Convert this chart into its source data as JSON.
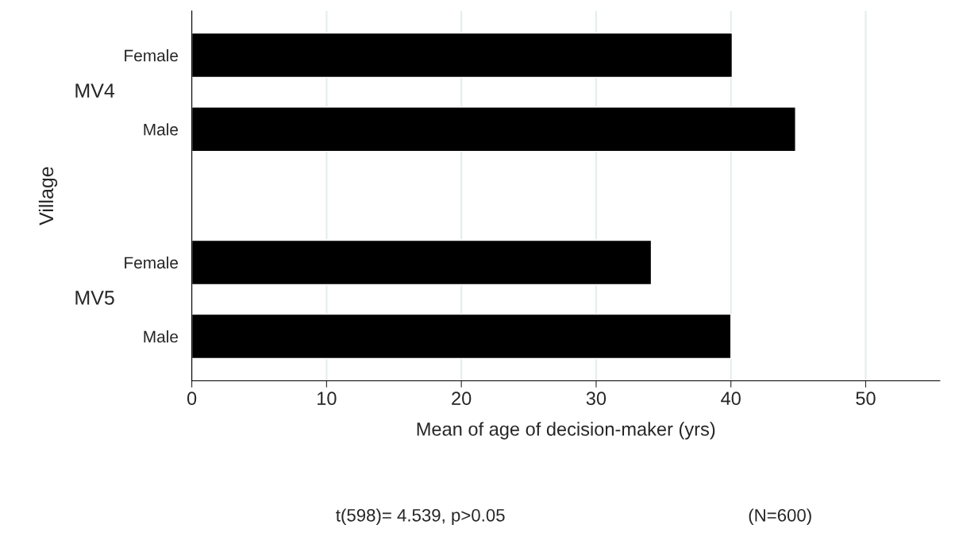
{
  "chart_data": {
    "type": "bar",
    "orientation": "horizontal",
    "categories": [
      "Female",
      "Male",
      "Female",
      "Male"
    ],
    "values": [
      40.1,
      44.8,
      34.1,
      40.0
    ],
    "color": "#000000",
    "xlim": [
      0,
      55.5
    ],
    "xticks": [
      0,
      10,
      20,
      30,
      40,
      50
    ],
    "xlabel": "Mean of age of decision-maker (yrs)",
    "ylabel": "Village",
    "grid": "x",
    "annotations": [
      "MV4",
      "MV5",
      "t(598)= 4.539, p>0.05",
      "(N=600)"
    ]
  }
}
